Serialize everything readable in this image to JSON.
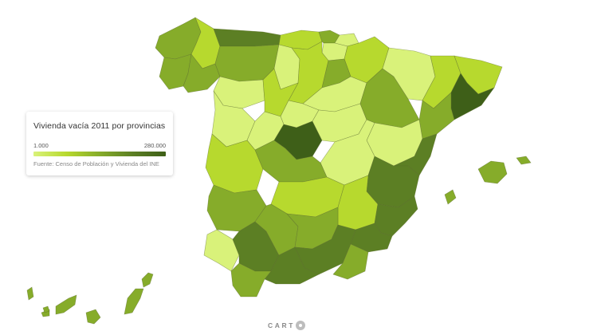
{
  "legend": {
    "title": "Vivienda vacía 2011 por provincias",
    "min_label": "1.000",
    "max_label": "280.000",
    "source": "Fuente: Censo de Población y Vivienda del INE"
  },
  "attribution": {
    "text": "CART",
    "logo_icon": "carto-logo-icon"
  },
  "palette": [
    "#d9f27a",
    "#b7d92e",
    "#86ac2a",
    "#5c7f24",
    "#3e5f18"
  ]
}
